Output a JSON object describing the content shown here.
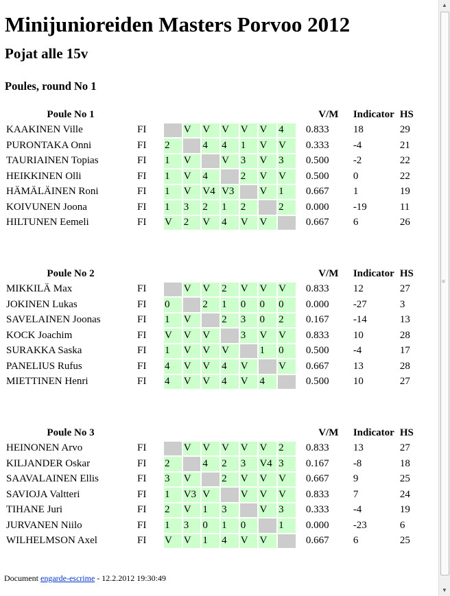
{
  "title": "Minijunioreiden Masters Porvoo 2012",
  "subtitle": "Pojat alle 15v",
  "round_heading": "Poules, round No 1",
  "columns": {
    "vm": "V/M",
    "indicator": "Indicator",
    "hs": "HS"
  },
  "poules": [
    {
      "name": "Poule No 1",
      "rows": [
        {
          "name": "KAAKINEN Ville",
          "nat": "FI",
          "scores": [
            "",
            "V",
            "V",
            "V",
            "V",
            "V",
            "4"
          ],
          "vm": "0.833",
          "ind": "18",
          "hs": "29"
        },
        {
          "name": "PURONTAKA Onni",
          "nat": "FI",
          "scores": [
            "2",
            "",
            "4",
            "4",
            "1",
            "V",
            "V"
          ],
          "vm": "0.333",
          "ind": "-4",
          "hs": "21"
        },
        {
          "name": "TAURIAINEN Topias",
          "nat": "FI",
          "scores": [
            "1",
            "V",
            "",
            "V",
            "3",
            "V",
            "3"
          ],
          "vm": "0.500",
          "ind": "-2",
          "hs": "22"
        },
        {
          "name": "HEIKKINEN Olli",
          "nat": "FI",
          "scores": [
            "1",
            "V",
            "4",
            "",
            "2",
            "V",
            "V"
          ],
          "vm": "0.500",
          "ind": "0",
          "hs": "22"
        },
        {
          "name": "HÄMÄLÄINEN Roni",
          "nat": "FI",
          "scores": [
            "1",
            "V",
            "V4",
            "V3",
            "",
            "V",
            "1"
          ],
          "vm": "0.667",
          "ind": "1",
          "hs": "19"
        },
        {
          "name": "KOIVUNEN Joona",
          "nat": "FI",
          "scores": [
            "1",
            "3",
            "2",
            "1",
            "2",
            "",
            "2"
          ],
          "vm": "0.000",
          "ind": "-19",
          "hs": "11"
        },
        {
          "name": "HILTUNEN Eemeli",
          "nat": "FI",
          "scores": [
            "V",
            "2",
            "V",
            "4",
            "V",
            "V",
            ""
          ],
          "vm": "0.667",
          "ind": "6",
          "hs": "26"
        }
      ]
    },
    {
      "name": "Poule No 2",
      "rows": [
        {
          "name": "MIKKILÄ Max",
          "nat": "FI",
          "scores": [
            "",
            "V",
            "V",
            "2",
            "V",
            "V",
            "V"
          ],
          "vm": "0.833",
          "ind": "12",
          "hs": "27"
        },
        {
          "name": "JOKINEN Lukas",
          "nat": "FI",
          "scores": [
            "0",
            "",
            "2",
            "1",
            "0",
            "0",
            "0"
          ],
          "vm": "0.000",
          "ind": "-27",
          "hs": "3"
        },
        {
          "name": "SAVELAINEN Joonas",
          "nat": "FI",
          "scores": [
            "1",
            "V",
            "",
            "2",
            "3",
            "0",
            "2"
          ],
          "vm": "0.167",
          "ind": "-14",
          "hs": "13"
        },
        {
          "name": "KOCK Joachim",
          "nat": "FI",
          "scores": [
            "V",
            "V",
            "V",
            "",
            "3",
            "V",
            "V"
          ],
          "vm": "0.833",
          "ind": "10",
          "hs": "28"
        },
        {
          "name": "SURAKKA Saska",
          "nat": "FI",
          "scores": [
            "1",
            "V",
            "V",
            "V",
            "",
            "1",
            "0"
          ],
          "vm": "0.500",
          "ind": "-4",
          "hs": "17"
        },
        {
          "name": "PANELIUS Rufus",
          "nat": "FI",
          "scores": [
            "4",
            "V",
            "V",
            "4",
            "V",
            "",
            "V"
          ],
          "vm": "0.667",
          "ind": "13",
          "hs": "28"
        },
        {
          "name": "MIETTINEN Henri",
          "nat": "FI",
          "scores": [
            "4",
            "V",
            "V",
            "4",
            "V",
            "4",
            ""
          ],
          "vm": "0.500",
          "ind": "10",
          "hs": "27"
        }
      ]
    },
    {
      "name": "Poule No 3",
      "rows": [
        {
          "name": "HEINONEN Arvo",
          "nat": "FI",
          "scores": [
            "",
            "V",
            "V",
            "V",
            "V",
            "V",
            "2"
          ],
          "vm": "0.833",
          "ind": "13",
          "hs": "27"
        },
        {
          "name": "KILJANDER Oskar",
          "nat": "FI",
          "scores": [
            "2",
            "",
            "4",
            "2",
            "3",
            "V4",
            "3"
          ],
          "vm": "0.167",
          "ind": "-8",
          "hs": "18"
        },
        {
          "name": "SAAVALAINEN Ellis",
          "nat": "FI",
          "scores": [
            "3",
            "V",
            "",
            "2",
            "V",
            "V",
            "V"
          ],
          "vm": "0.667",
          "ind": "9",
          "hs": "25"
        },
        {
          "name": "SAVIOJA Valtteri",
          "nat": "FI",
          "scores": [
            "1",
            "V3",
            "V",
            "",
            "V",
            "V",
            "V"
          ],
          "vm": "0.833",
          "ind": "7",
          "hs": "24"
        },
        {
          "name": "TIHANE Juri",
          "nat": "FI",
          "scores": [
            "2",
            "V",
            "1",
            "3",
            "",
            "V",
            "3"
          ],
          "vm": "0.333",
          "ind": "-4",
          "hs": "19"
        },
        {
          "name": "JURVANEN Niilo",
          "nat": "FI",
          "scores": [
            "1",
            "3",
            "0",
            "1",
            "0",
            "",
            "1"
          ],
          "vm": "0.000",
          "ind": "-23",
          "hs": "6"
        },
        {
          "name": "WILHELMSON Axel",
          "nat": "FI",
          "scores": [
            "V",
            "V",
            "1",
            "4",
            "V",
            "V",
            ""
          ],
          "vm": "0.667",
          "ind": "6",
          "hs": "25"
        }
      ]
    }
  ],
  "footer": {
    "prefix": "Document ",
    "link": "engarde-escrime",
    "suffix": " - 12.2.2012 19:30:49"
  },
  "colors": {
    "score_cell": "#ccffcc",
    "self_cell": "#cccccc",
    "link": "#0033cc"
  }
}
